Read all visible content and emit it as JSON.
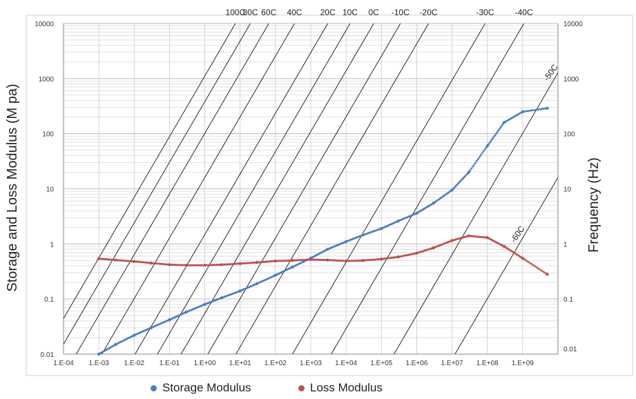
{
  "chart_data": {
    "type": "scatter",
    "x_scale": "log",
    "y_scale": "log",
    "xlim": [
      0.0001,
      10000000000
    ],
    "ylim": [
      0.01,
      10000
    ],
    "x_tick_labels": [
      "1.E-04",
      "1.E-03",
      "1.E-02",
      "1.E-01",
      "1.E+00",
      "1.E+01",
      "1.E+02",
      "1.E+03",
      "1.E+04",
      "1.E+05",
      "1.E+06",
      "1.E+07",
      "1.E+08",
      "1.E+09"
    ],
    "y_tick_labels_left": [
      "0.01",
      "0.1",
      "1",
      "10",
      "100",
      "1000",
      "10000"
    ],
    "y_tick_labels_right": [
      "0.01",
      "0.1",
      "1",
      "10",
      "100",
      "1000",
      "10000"
    ],
    "ylabel_left": "Storage and Loss Modulus (M pa)",
    "ylabel_right": "Frequency (Hz)",
    "grid": true,
    "legend_position": "bottom",
    "series": [
      {
        "name": "Storage Modulus",
        "color": "#4a7fc1",
        "x": [
          0.001,
          0.003,
          0.01,
          0.03,
          0.1,
          0.3,
          1,
          3,
          10,
          30,
          100,
          300,
          1000,
          3000,
          10000,
          30000,
          100000,
          300000,
          1000000,
          3000000,
          10000000,
          30000000,
          100000000,
          300000000,
          1000000000,
          5000000000
        ],
        "y": [
          0.01,
          0.015,
          0.022,
          0.03,
          0.042,
          0.058,
          0.08,
          0.105,
          0.14,
          0.19,
          0.27,
          0.38,
          0.55,
          0.8,
          1.1,
          1.45,
          1.9,
          2.6,
          3.6,
          5.5,
          9.5,
          20,
          60,
          160,
          250,
          290
        ]
      },
      {
        "name": "Loss Modulus",
        "color": "#c0504d",
        "x": [
          0.001,
          0.003,
          0.01,
          0.03,
          0.1,
          0.3,
          1,
          3,
          10,
          30,
          100,
          300,
          1000,
          3000,
          10000,
          30000,
          100000,
          300000,
          1000000,
          3000000,
          10000000,
          30000000,
          100000000,
          300000000,
          1000000000,
          5000000000
        ],
        "y": [
          0.54,
          0.51,
          0.48,
          0.45,
          0.42,
          0.41,
          0.41,
          0.42,
          0.44,
          0.46,
          0.49,
          0.5,
          0.52,
          0.51,
          0.49,
          0.5,
          0.53,
          0.58,
          0.68,
          0.85,
          1.15,
          1.4,
          1.3,
          0.9,
          0.55,
          0.28
        ]
      }
    ],
    "temperature_lines": [
      {
        "label": "100C",
        "x_at_y1": 0.0017
      },
      {
        "label": "80C",
        "x_at_y1": 0.0045
      },
      {
        "label": "60C",
        "x_at_y1": 0.015
      },
      {
        "label": "40C",
        "x_at_y1": 0.08
      },
      {
        "label": "20C",
        "x_at_y1": 0.7
      },
      {
        "label": "10C",
        "x_at_y1": 3
      },
      {
        "label": "0C",
        "x_at_y1": 14
      },
      {
        "label": "-10C",
        "x_at_y1": 80
      },
      {
        "label": "-20C",
        "x_at_y1": 500
      },
      {
        "label": "-30C",
        "x_at_y1": 20000
      },
      {
        "label": "-40C",
        "x_at_y1": 250000
      },
      {
        "label": "-50C",
        "x_at_y1": 15000000
      },
      {
        "label": "-60C",
        "x_at_y1": 800000000
      }
    ],
    "temperature_line_slope": 1.1
  },
  "legend": {
    "items": [
      {
        "label": "Storage Modulus",
        "color": "#4a7fc1"
      },
      {
        "label": "Loss Modulus",
        "color": "#c0504d"
      }
    ]
  }
}
